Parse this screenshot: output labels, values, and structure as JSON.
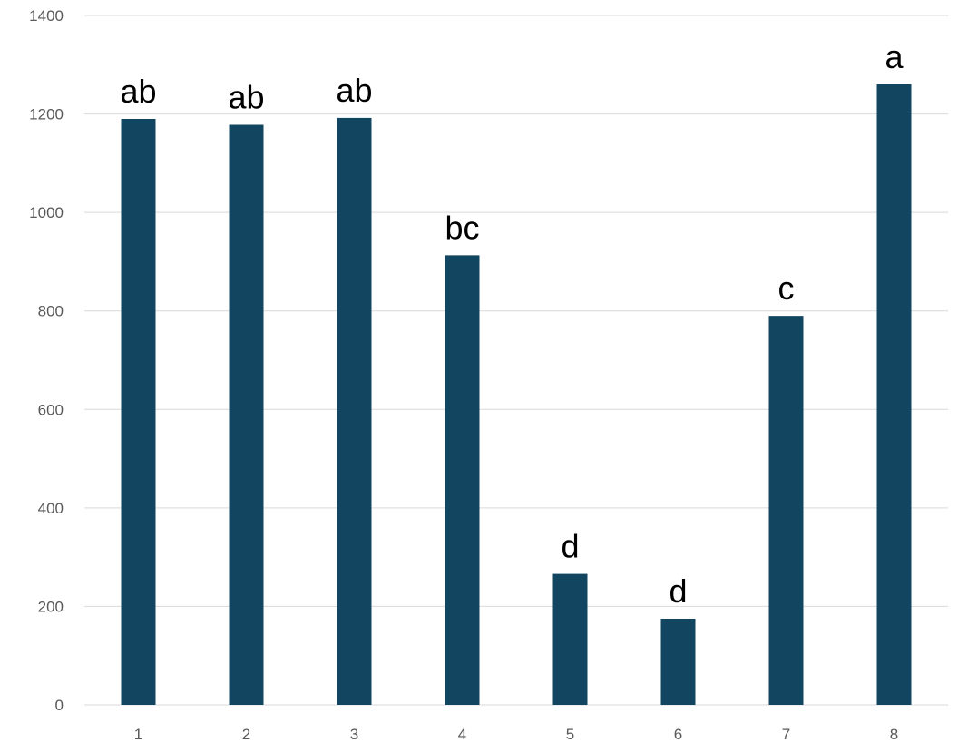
{
  "chart_data": {
    "type": "bar",
    "title": "",
    "xlabel": "",
    "ylabel": "",
    "categories": [
      "1",
      "2",
      "3",
      "4",
      "5",
      "6",
      "7",
      "8"
    ],
    "values": [
      1190,
      1178,
      1192,
      913,
      266,
      175,
      790,
      1260
    ],
    "data_labels": [
      "ab",
      "ab",
      "ab",
      "bc",
      "d",
      "d",
      "c",
      "a"
    ],
    "ylim": [
      0,
      1400
    ],
    "yticks": [
      "0",
      "200",
      "400",
      "600",
      "800",
      "1000",
      "1200",
      "1400"
    ],
    "grid": true,
    "legend": "none",
    "bar_color": "#124660",
    "gridline_color": "#d9d9d9",
    "tick_label_color": "#595959"
  }
}
